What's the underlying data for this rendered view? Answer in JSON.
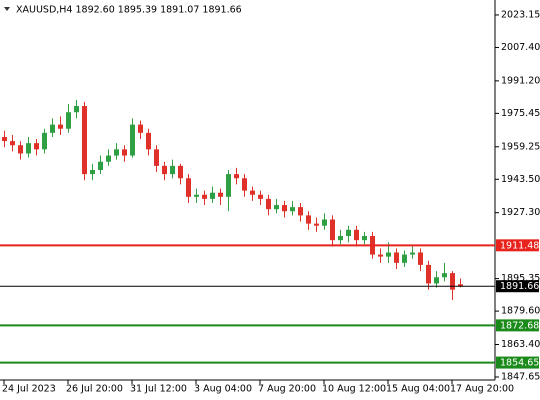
{
  "chart_data": {
    "type": "candlestick",
    "title": "XAUUSD,H4  1892.60 1895.39 1891.07 1891.66",
    "categories": [
      "24 Jul 2023",
      null,
      null,
      null,
      null,
      null,
      null,
      null,
      "26 Jul 20:00",
      null,
      null,
      null,
      null,
      null,
      null,
      null,
      "31 Jul 12:00",
      null,
      null,
      null,
      null,
      null,
      null,
      null,
      "3 Aug 04:00",
      null,
      null,
      null,
      null,
      null,
      null,
      null,
      "7 Aug 20:00",
      null,
      null,
      null,
      null,
      null,
      null,
      null,
      "10 Aug 12:00",
      null,
      null,
      null,
      null,
      null,
      null,
      null,
      "15 Aug 04:00",
      null,
      null,
      null,
      null,
      null,
      null,
      null,
      "17 Aug 20:00",
      null
    ],
    "open": [
      1964,
      1962,
      1960,
      1956,
      1961,
      1958,
      1966,
      1970,
      1968,
      1976,
      1979,
      1946,
      1948,
      1952,
      1955,
      1958,
      1955,
      1970,
      1966,
      1958,
      1950,
      1946,
      1950,
      1944,
      1935,
      1936,
      1934,
      1937,
      1935,
      1946,
      1944,
      1938,
      1936,
      1934,
      1929,
      1931,
      1928,
      1930,
      1926,
      1922,
      1921,
      1924,
      1914,
      1916,
      1919,
      1914,
      1916,
      1907,
      1906,
      1908,
      1903,
      1907,
      1908,
      1902,
      1893,
      1896,
      1898,
      1892.6
    ],
    "high": [
      1967,
      1965,
      1962,
      1964,
      1963,
      1968,
      1973,
      1974,
      1980,
      1982,
      1981,
      1951,
      1955,
      1958,
      1961,
      1960,
      1973,
      1972,
      1968,
      1960,
      1952,
      1953,
      1951,
      1946,
      1939,
      1938,
      1940,
      1939,
      1948,
      1949,
      1946,
      1940,
      1938,
      1936,
      1934,
      1933,
      1933,
      1932,
      1928,
      1925,
      1927,
      1926,
      1919,
      1921,
      1921,
      1918,
      1918,
      1910,
      1913,
      1910,
      1909,
      1911,
      1910,
      1904,
      1899,
      1903,
      1899,
      1895.39
    ],
    "low": [
      1959,
      1957,
      1953,
      1954,
      1955,
      1956,
      1964,
      1965,
      1966,
      1973,
      1943,
      1943,
      1946,
      1950,
      1953,
      1952,
      1954,
      1963,
      1955,
      1947,
      1943,
      1944,
      1941,
      1932,
      1932,
      1931,
      1932,
      1931,
      1928,
      1941,
      1935,
      1933,
      1931,
      1926,
      1927,
      1925,
      1926,
      1923,
      1919,
      1918,
      1919,
      1911,
      1912,
      1913,
      1911,
      1912,
      1905,
      1903,
      1903,
      1900,
      1901,
      1905,
      1899,
      1890,
      1891,
      1894,
      1885,
      1891.07
    ],
    "close": [
      1962,
      1960,
      1956,
      1961,
      1958,
      1966,
      1970,
      1968,
      1976,
      1979,
      1946,
      1948,
      1952,
      1955,
      1958,
      1955,
      1970,
      1966,
      1958,
      1950,
      1946,
      1950,
      1944,
      1935,
      1936,
      1934,
      1937,
      1935,
      1946,
      1944,
      1938,
      1936,
      1934,
      1929,
      1931,
      1928,
      1930,
      1926,
      1922,
      1921,
      1924,
      1914,
      1916,
      1919,
      1914,
      1916,
      1907,
      1906,
      1908,
      1903,
      1907,
      1908,
      1902,
      1893,
      1896,
      1898,
      1890,
      1891.66
    ],
    "up_color": "#2ea043",
    "down_color": "#e0302a",
    "ylim": [
      1846.2,
      2030.4
    ],
    "yticks": [
      2023.15,
      {
        "value": 2007.4,
        "label": "2007.40"
      },
      {
        "value": 1991.2,
        "label": "1991.20"
      },
      1975.45,
      1959.25,
      {
        "value": 1943.5,
        "label": "1943.50"
      },
      {
        "value": 1927.3,
        "label": "1927.30"
      },
      1895.35,
      {
        "value": 1879.6,
        "label": "1879.60"
      },
      {
        "value": 1863.4,
        "label": "1863.40"
      },
      1847.65
    ],
    "levels": [
      {
        "value": 1911.48,
        "color": "#e8231e"
      },
      {
        "value": 1891.66,
        "color": "#000000"
      },
      {
        "value": 1872.68,
        "color": "#1a8a1a"
      },
      {
        "value": 1854.65,
        "color": "#1a8a1a"
      }
    ]
  }
}
